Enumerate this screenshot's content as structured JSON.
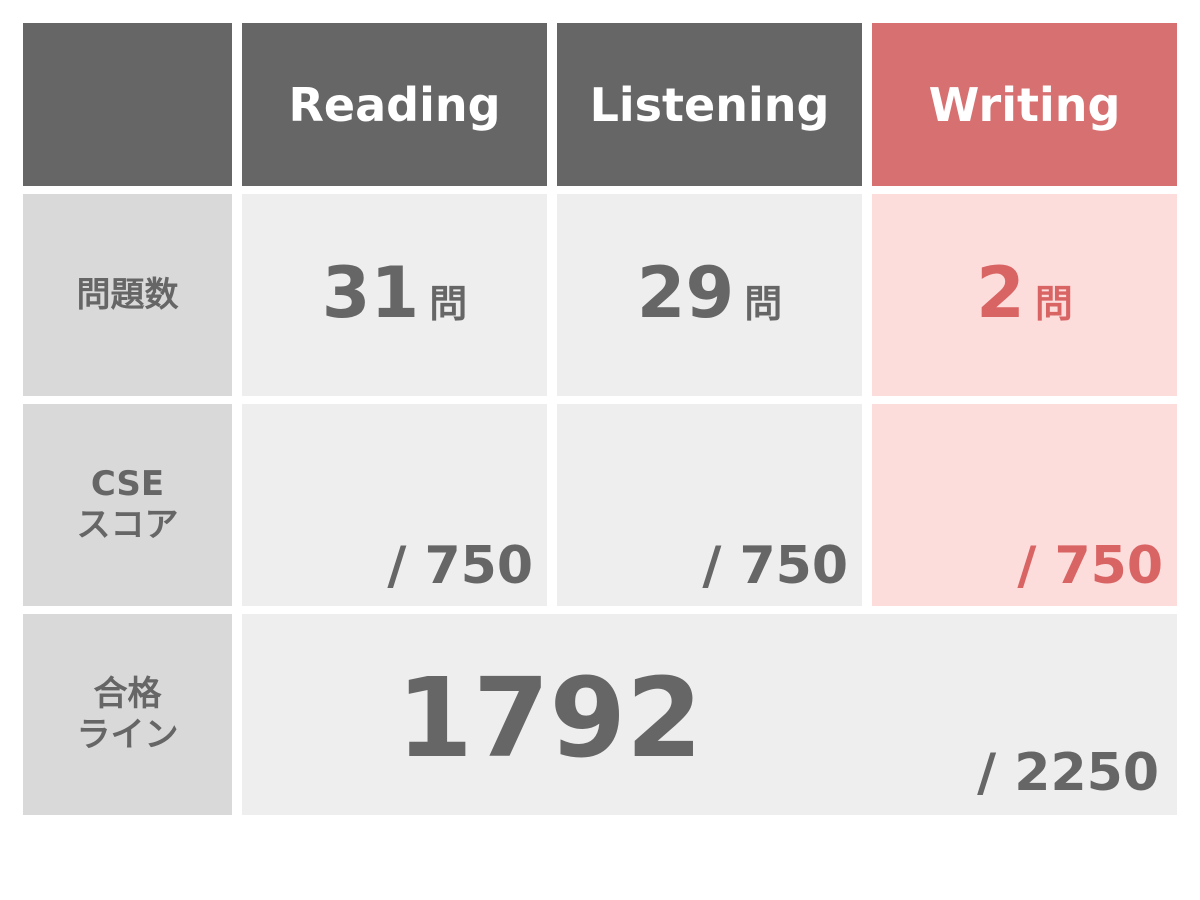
{
  "header": {
    "corner": "",
    "columns": [
      "Reading",
      "Listening",
      "Writing"
    ]
  },
  "rows": {
    "questions": {
      "label": "問題数",
      "values": [
        "31",
        "29",
        "2"
      ],
      "unit": "問"
    },
    "cse": {
      "label_line1": "CSE",
      "label_line2": "スコア",
      "max": [
        "/ 750",
        "/ 750",
        "/ 750"
      ]
    },
    "pass": {
      "label_line1": "合格",
      "label_line2": "ライン",
      "value": "1792",
      "total": "/ 2250"
    }
  },
  "colors": {
    "header": "#666666",
    "highlight_header": "#d77070",
    "highlight_bg": "#fddcdc",
    "highlight_text": "#d96464",
    "cell_bg": "#eeeeee",
    "label_bg": "#d9d9d9"
  }
}
